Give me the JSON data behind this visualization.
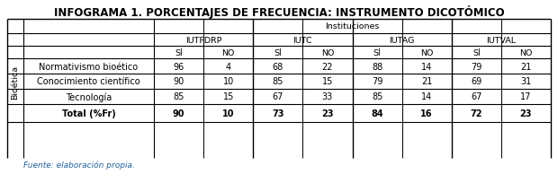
{
  "title": "INFOGRAMA 1. PORCENTAJES DE FRECUENCIA: INSTRUMENTO DICOTÓMICO",
  "institutions_label": "Instituciones",
  "institutions": [
    "IUTFDRP",
    "IUTC",
    "IUTAG",
    "IUTVAL"
  ],
  "si_no": [
    "SÍ",
    "NO",
    "SÍ",
    "NO",
    "SÍ",
    "NO",
    "SÍ",
    "NO"
  ],
  "row_group_label": "Bioética",
  "data_rows": [
    {
      "label": "Normativismo bioético",
      "values": [
        96,
        4,
        68,
        22,
        88,
        14,
        79,
        21
      ]
    },
    {
      "label": "Conocimiento científico",
      "values": [
        90,
        10,
        85,
        15,
        79,
        21,
        69,
        31
      ]
    },
    {
      "label": "Tecnología",
      "values": [
        85,
        15,
        67,
        33,
        85,
        14,
        67,
        17
      ]
    }
  ],
  "total_label": "Total (%Fr)",
  "total_values": [
    90,
    10,
    73,
    23,
    84,
    16,
    72,
    23
  ],
  "footnote": "Fuente: elaboración propia.",
  "footnote_color": "#2060a0",
  "bg_color": "#ffffff",
  "title_fontsize": 8.5,
  "header_fontsize": 6.8,
  "data_fontsize": 7.0,
  "footnote_fontsize": 6.5,
  "group_label_fontsize": 6.8
}
